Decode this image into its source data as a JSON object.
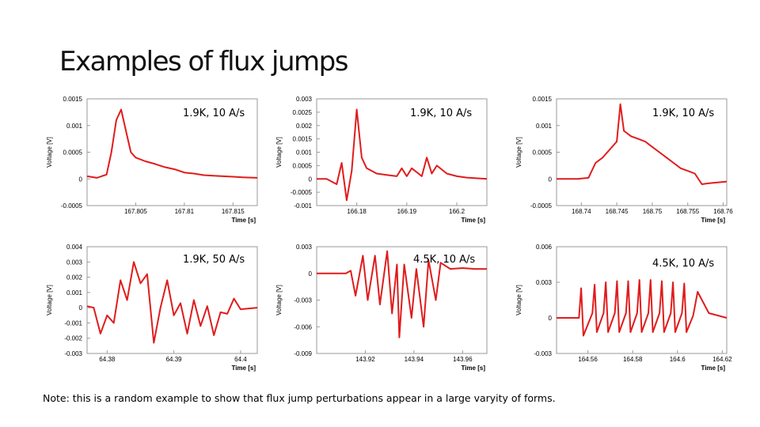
{
  "title": "Examples of flux jumps",
  "note": "Note: this is a random example to show that flux jump perturbations appear in a large varyity of forms.",
  "colors": {
    "trace": "#e01c1c",
    "axis": "#9a9a9a",
    "text": "#000000"
  },
  "chart_data": [
    {
      "type": "line",
      "caption": "1.9K, 10 A/s",
      "xlabel": "Time [s]",
      "ylabel": "Voltage [V]",
      "xlim": [
        167.8,
        167.8175
      ],
      "ylim": [
        -0.0005,
        0.0015
      ],
      "xticks": [
        "167.805",
        "167.81",
        "167.815"
      ],
      "xtick_values": [
        167.805,
        167.81,
        167.815
      ],
      "yticks": [
        "0.0015",
        "0.001",
        "0.0005",
        "0",
        "-0.0005"
      ],
      "ytick_values": [
        0.0015,
        0.001,
        0.0005,
        0,
        -0.0005
      ],
      "x": [
        167.8,
        167.801,
        167.802,
        167.8025,
        167.803,
        167.8035,
        167.804,
        167.8045,
        167.805,
        167.806,
        167.807,
        167.808,
        167.809,
        167.81,
        167.811,
        167.812,
        167.813,
        167.814,
        167.815,
        167.816,
        167.8175
      ],
      "y": [
        5e-05,
        2e-05,
        8e-05,
        0.0005,
        0.0011,
        0.0013,
        0.0009,
        0.0005,
        0.0004,
        0.00033,
        0.00028,
        0.00022,
        0.00018,
        0.00012,
        0.0001,
        7e-05,
        6e-05,
        5e-05,
        4e-05,
        3e-05,
        2e-05
      ]
    },
    {
      "type": "line",
      "caption": "1.9K, 10 A/s",
      "xlabel": "Time [s]",
      "ylabel": "Voltage [V]",
      "xlim": [
        166.172,
        166.206
      ],
      "ylim": [
        -0.001,
        0.003
      ],
      "xticks": [
        "166.18",
        "166.19",
        "166.2"
      ],
      "xtick_values": [
        166.18,
        166.19,
        166.2
      ],
      "yticks": [
        "0.003",
        "0.0025",
        "0.002",
        "0.0015",
        "0.001",
        "0.0005",
        "0",
        "-0.0005",
        "-0.001"
      ],
      "ytick_values": [
        0.003,
        0.0025,
        0.002,
        0.0015,
        0.001,
        0.0005,
        0,
        -0.0005,
        -0.001
      ],
      "x": [
        166.172,
        166.174,
        166.176,
        166.177,
        166.178,
        166.179,
        166.18,
        166.181,
        166.182,
        166.184,
        166.186,
        166.188,
        166.189,
        166.19,
        166.191,
        166.193,
        166.194,
        166.195,
        166.196,
        166.198,
        166.2,
        166.202,
        166.206
      ],
      "y": [
        0.0,
        0.0,
        -0.0002,
        0.0006,
        -0.0008,
        0.0003,
        0.0026,
        0.0008,
        0.0004,
        0.0002,
        0.00015,
        0.0001,
        0.0004,
        0.0001,
        0.0004,
        0.0001,
        0.0008,
        0.0002,
        0.0005,
        0.0002,
        0.0001,
        5e-05,
        0.0
      ]
    },
    {
      "type": "line",
      "caption": "1.9K, 10 A/s",
      "xlabel": "Time [s]",
      "ylabel": "Voltage [V]",
      "xlim": [
        168.7365,
        168.7605
      ],
      "ylim": [
        -0.0005,
        0.0015
      ],
      "xticks": [
        "168.74",
        "168.745",
        "168.75",
        "168.755",
        "168.76"
      ],
      "xtick_values": [
        168.74,
        168.745,
        168.75,
        168.755,
        168.76
      ],
      "yticks": [
        "0.0015",
        "0.001",
        "0.0005",
        "0",
        "-0.0005"
      ],
      "ytick_values": [
        0.0015,
        0.001,
        0.0005,
        0,
        -0.0005
      ],
      "x": [
        168.7365,
        168.738,
        168.7395,
        168.741,
        168.742,
        168.743,
        168.744,
        168.745,
        168.7455,
        168.746,
        168.747,
        168.748,
        168.749,
        168.75,
        168.751,
        168.752,
        168.753,
        168.754,
        168.755,
        168.756,
        168.757,
        168.758,
        168.7605
      ],
      "y": [
        0.0,
        0.0,
        0.0,
        2e-05,
        0.0003,
        0.0004,
        0.00055,
        0.0007,
        0.0014,
        0.0009,
        0.0008,
        0.00075,
        0.0007,
        0.0006,
        0.0005,
        0.0004,
        0.0003,
        0.0002,
        0.00015,
        0.0001,
        -0.0001,
        -8e-05,
        -5e-05
      ]
    },
    {
      "type": "line",
      "caption": "1.9K, 50 A/s",
      "xlabel": "Time [s]",
      "ylabel": "Voltage [V]",
      "xlim": [
        64.377,
        64.4025
      ],
      "ylim": [
        -0.003,
        0.004
      ],
      "xticks": [
        "64.38",
        "64.39",
        "64.4"
      ],
      "xtick_values": [
        64.38,
        64.39,
        64.4
      ],
      "yticks": [
        "0.004",
        "0.003",
        "0.002",
        "0.001",
        "0",
        "-0.001",
        "-0.002",
        "-0.003"
      ],
      "ytick_values": [
        0.004,
        0.003,
        0.002,
        0.001,
        0,
        -0.001,
        -0.002,
        -0.003
      ],
      "x": [
        64.377,
        64.378,
        64.379,
        64.38,
        64.381,
        64.382,
        64.383,
        64.384,
        64.385,
        64.386,
        64.387,
        64.388,
        64.389,
        64.39,
        64.391,
        64.392,
        64.393,
        64.394,
        64.395,
        64.396,
        64.397,
        64.398,
        64.399,
        64.4,
        64.4025
      ],
      "y": [
        0.0001,
        0.0,
        -0.0017,
        -0.0005,
        -0.001,
        0.0018,
        0.0005,
        0.003,
        0.0016,
        0.0022,
        -0.0023,
        0.0,
        0.0018,
        -0.0005,
        0.0003,
        -0.0017,
        0.0005,
        -0.0012,
        0.0001,
        -0.0018,
        -0.0003,
        -0.0004,
        0.0006,
        -0.0001,
        0.0
      ]
    },
    {
      "type": "line",
      "caption": "4.5K, 10 A/s",
      "xlabel": "Time [s]",
      "ylabel": "Voltage [V]",
      "xlim": [
        143.9,
        143.97
      ],
      "ylim": [
        -0.009,
        0.003
      ],
      "xticks": [
        "143.92",
        "143.94",
        "143.96"
      ],
      "xtick_values": [
        143.92,
        143.94,
        143.96
      ],
      "yticks": [
        "0.003",
        "0",
        "-0.003",
        "-0.006",
        "-0.009"
      ],
      "ytick_values": [
        0.003,
        0,
        -0.003,
        -0.006,
        -0.009
      ],
      "x": [
        143.9,
        143.912,
        143.914,
        143.916,
        143.919,
        143.921,
        143.924,
        143.926,
        143.929,
        143.931,
        143.933,
        143.934,
        143.936,
        143.939,
        143.941,
        143.944,
        143.946,
        143.949,
        143.951,
        143.955,
        143.96,
        143.965,
        143.97
      ],
      "y": [
        0.0,
        0.0,
        0.0003,
        -0.0025,
        0.002,
        -0.003,
        0.002,
        -0.0035,
        0.0025,
        -0.0045,
        0.001,
        -0.0072,
        0.001,
        -0.005,
        0.0005,
        -0.006,
        0.0015,
        -0.003,
        0.0012,
        0.0005,
        0.0006,
        0.0005,
        0.0005
      ]
    },
    {
      "type": "line",
      "caption": "4.5K, 10 A/s",
      "xlabel": "Time [s]",
      "ylabel": "Voltage [V]",
      "xlim": [
        164.546,
        164.622
      ],
      "ylim": [
        -0.003,
        0.006
      ],
      "xticks": [
        "164.56",
        "164.58",
        "164.6",
        "164.62"
      ],
      "xtick_values": [
        164.56,
        164.58,
        164.6,
        164.62
      ],
      "yticks": [
        "0.006",
        "0.003",
        "0",
        "-0.003"
      ],
      "ytick_values": [
        0.006,
        0.003,
        0,
        -0.003
      ],
      "x": [
        164.546,
        164.556,
        164.557,
        164.558,
        164.562,
        164.563,
        164.564,
        164.567,
        164.568,
        164.569,
        164.572,
        164.573,
        164.574,
        164.577,
        164.578,
        164.579,
        164.582,
        164.583,
        164.584,
        164.587,
        164.588,
        164.589,
        164.592,
        164.593,
        164.594,
        164.597,
        164.598,
        164.599,
        164.602,
        164.603,
        164.604,
        164.607,
        164.609,
        164.614,
        164.622
      ],
      "y": [
        0.0,
        0.0,
        0.0025,
        -0.0015,
        0.0004,
        0.0028,
        -0.0012,
        0.0004,
        0.003,
        -0.0012,
        0.0004,
        0.0031,
        -0.0012,
        0.0004,
        0.0031,
        -0.0012,
        0.0004,
        0.0032,
        -0.0012,
        0.0004,
        0.0032,
        -0.0012,
        0.0004,
        0.0031,
        -0.0012,
        0.0004,
        0.003,
        -0.0012,
        0.0004,
        0.0029,
        -0.0012,
        0.0002,
        0.0022,
        0.0004,
        0.0
      ]
    }
  ]
}
